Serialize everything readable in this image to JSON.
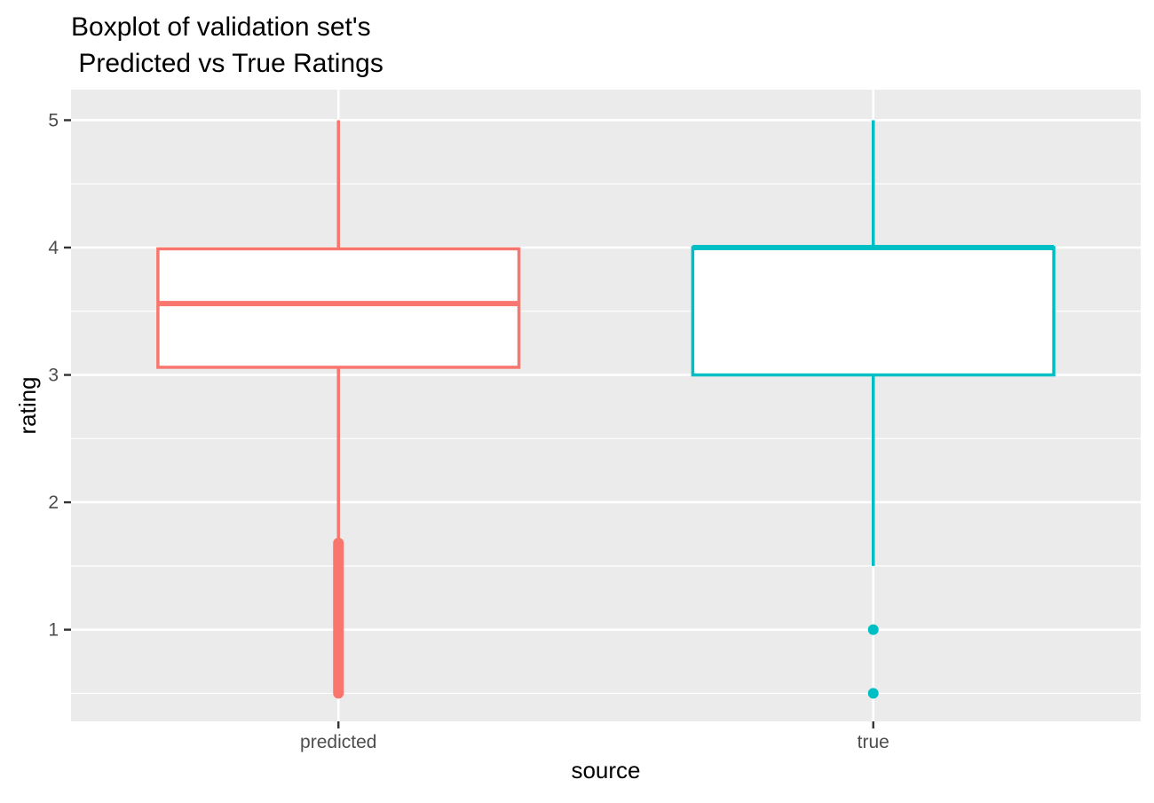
{
  "chart_data": {
    "type": "boxplot",
    "title_lines": [
      "Boxplot of validation set's",
      " Predicted vs True Ratings"
    ],
    "xlabel": "source",
    "ylabel": "rating",
    "categories": [
      "predicted",
      "true"
    ],
    "ylim": [
      0.28,
      5.24
    ],
    "y_ticks": [
      1,
      2,
      3,
      4,
      5
    ],
    "y_minor_ticks": [
      0.5,
      1.5,
      2.5,
      3.5,
      4.5
    ],
    "grid": true,
    "legend": "none",
    "background_color": "#ebebeb",
    "grid_color": "#ffffff",
    "boxes": [
      {
        "category": "predicted",
        "color": "#f8766d",
        "whisker_low": 1.68,
        "q1": 3.06,
        "median": 3.56,
        "q3": 3.99,
        "whisker_high": 5.0,
        "outlier_range": [
          0.5,
          1.68
        ],
        "outliers": []
      },
      {
        "category": "true",
        "color": "#00bfc4",
        "whisker_low": 1.5,
        "q1": 3.0,
        "median": 4.0,
        "q3": 4.0,
        "whisker_high": 5.0,
        "outlier_range": null,
        "outliers": [
          1.0,
          0.5
        ]
      }
    ]
  }
}
